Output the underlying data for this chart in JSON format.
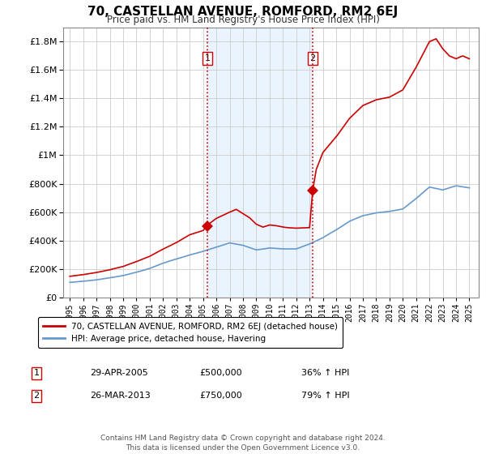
{
  "title": "70, CASTELLAN AVENUE, ROMFORD, RM2 6EJ",
  "subtitle": "Price paid vs. HM Land Registry's House Price Index (HPI)",
  "legend_line1": "70, CASTELLAN AVENUE, ROMFORD, RM2 6EJ (detached house)",
  "legend_line2": "HPI: Average price, detached house, Havering",
  "footer": "Contains HM Land Registry data © Crown copyright and database right 2024.\nThis data is licensed under the Open Government Licence v3.0.",
  "transaction1_date": 2005.32,
  "transaction1_price": 500000,
  "transaction1_label": "29-APR-2005",
  "transaction1_hpi_str": "36% ↑ HPI",
  "transaction2_date": 2013.23,
  "transaction2_price": 750000,
  "transaction2_label": "26-MAR-2013",
  "transaction2_hpi_str": "79% ↑ HPI",
  "red_line_color": "#cc0000",
  "blue_line_color": "#6699cc",
  "background_shade": "#ddeeff",
  "ylim": [
    0,
    1900000
  ],
  "xlim_start": 1994.5,
  "xlim_end": 2025.7,
  "figsize": [
    6.0,
    5.6
  ],
  "dpi": 100
}
